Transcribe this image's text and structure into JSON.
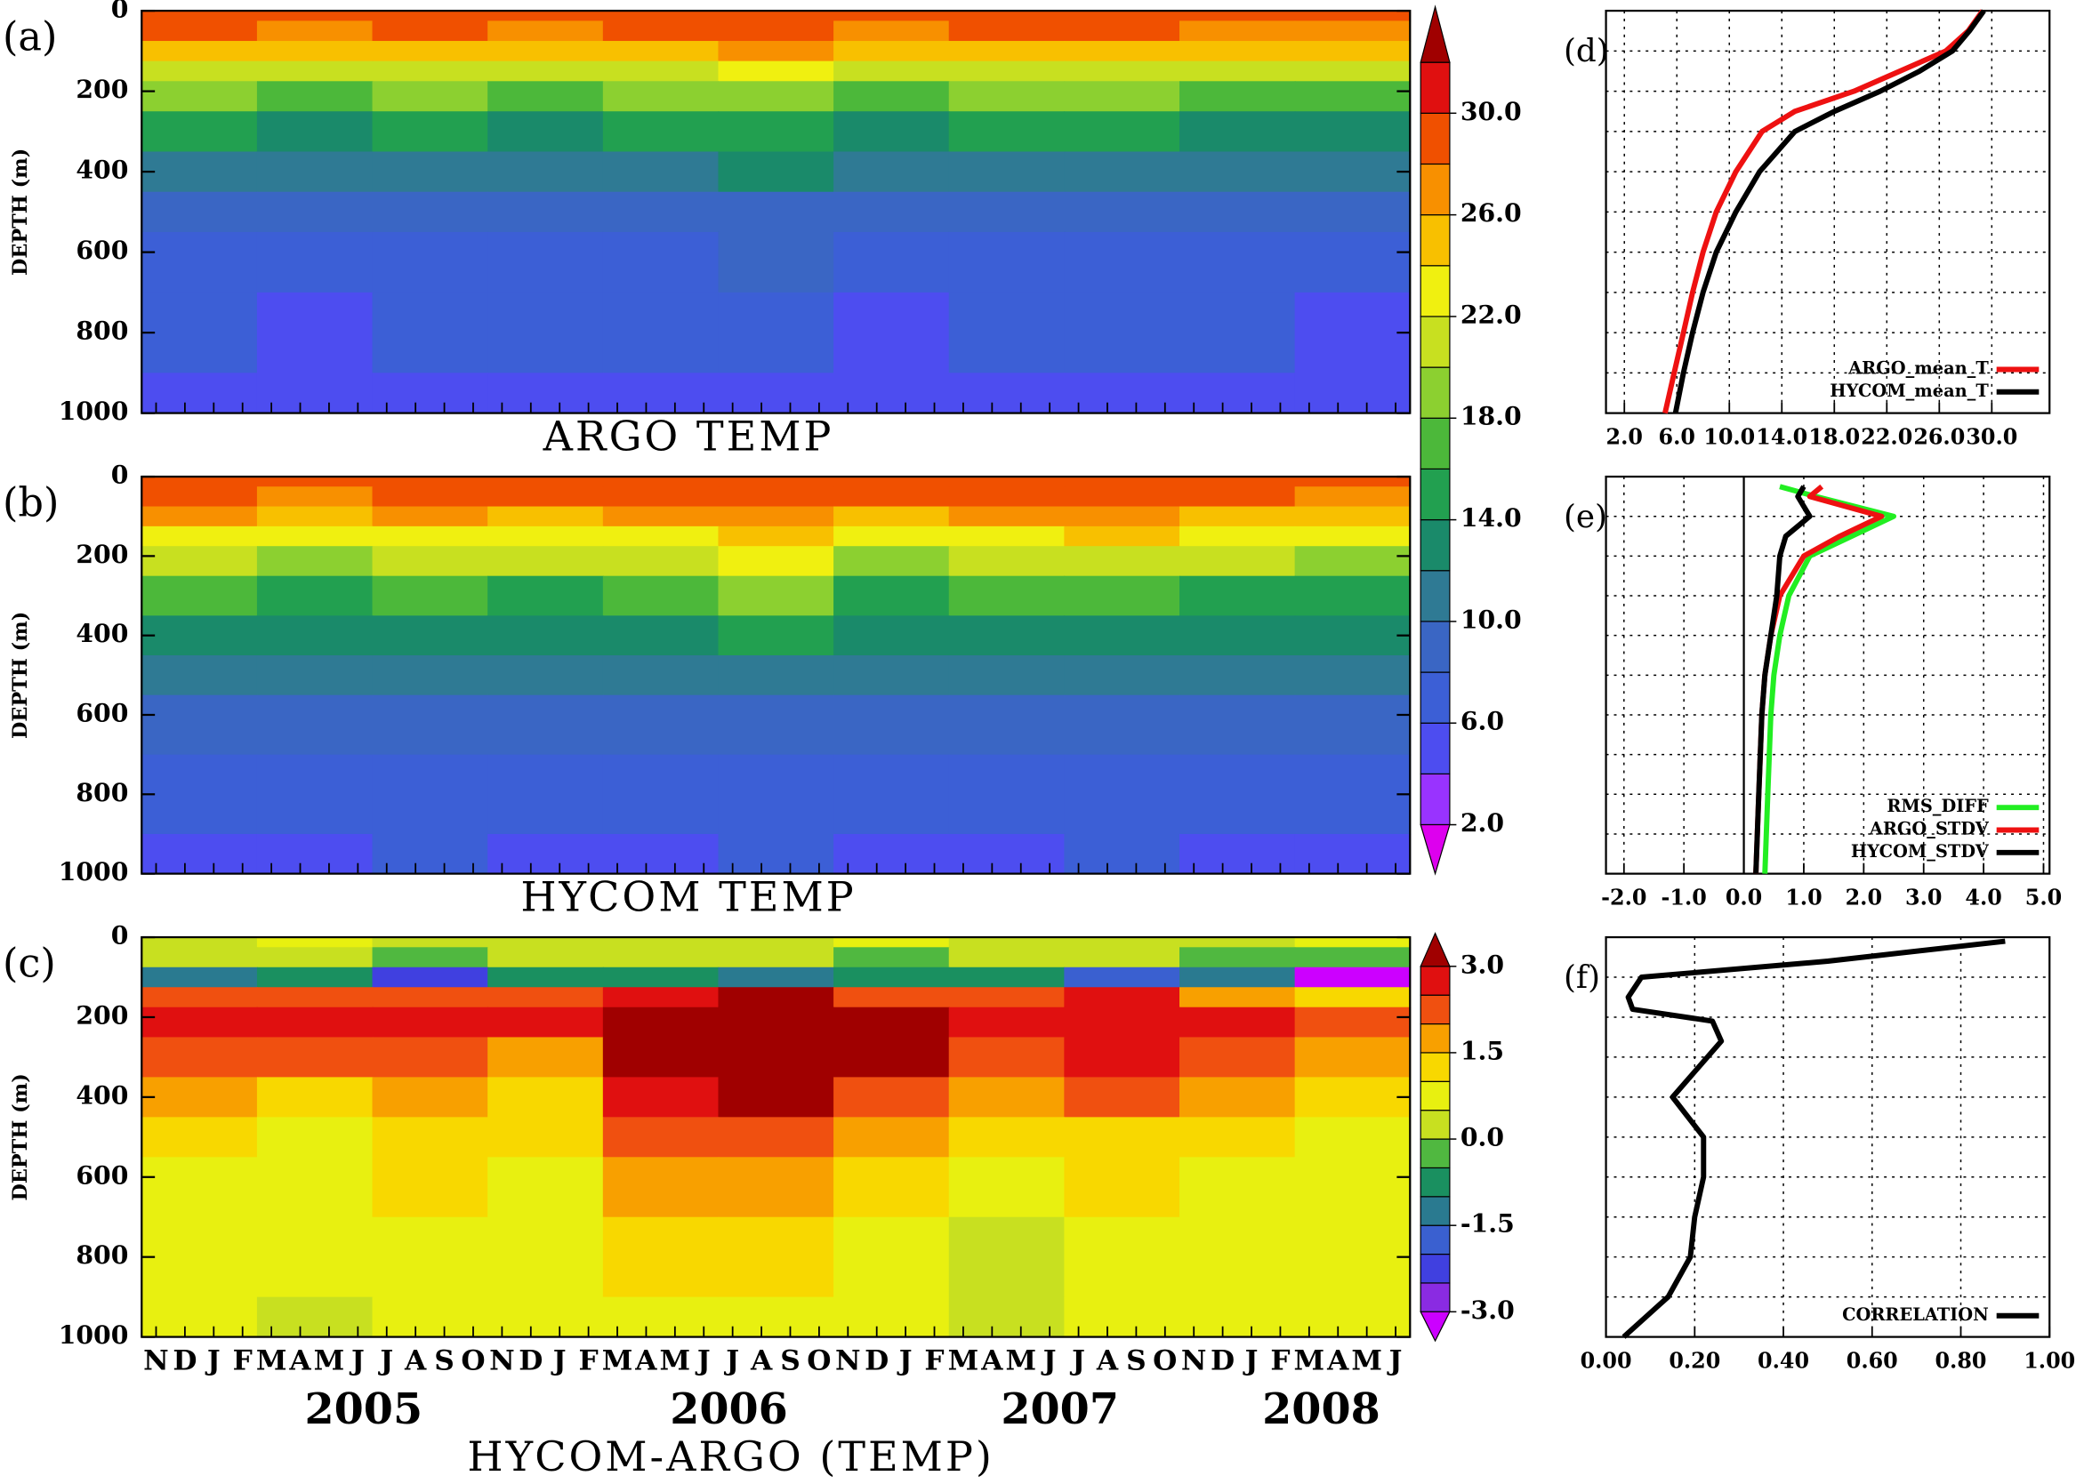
{
  "chart_data": [
    {
      "type": "heatmap",
      "label": "(a)",
      "title": "ARGO TEMP",
      "ylabel": "DEPTH (m)",
      "ylim": [
        1000,
        0
      ],
      "yticks": [
        0,
        200,
        400,
        600,
        800,
        1000
      ],
      "depths": [
        0,
        50,
        100,
        150,
        200,
        300,
        400,
        500,
        600,
        800,
        1000
      ],
      "z": [
        [
          29.5,
          29,
          29.8,
          29.2,
          29.6,
          29.8,
          29.1,
          29.5,
          29.9,
          29.3,
          29.0
        ],
        [
          28,
          27.5,
          28.5,
          27.8,
          28.2,
          28.8,
          27.6,
          28,
          28.6,
          27.9,
          27.5
        ],
        [
          25,
          24,
          25.5,
          24.5,
          25.2,
          26,
          24.2,
          25,
          25.8,
          24.6,
          24
        ],
        [
          21,
          20,
          21.5,
          20.5,
          21,
          22.5,
          20.2,
          21,
          21.8,
          20.5,
          20
        ],
        [
          18,
          17,
          18.5,
          17.5,
          18,
          19.5,
          17.2,
          18,
          18.8,
          17.6,
          17
        ],
        [
          14,
          13.5,
          14.5,
          13.8,
          14,
          15.5,
          13.6,
          14.2,
          14.8,
          13.8,
          13.4
        ],
        [
          11,
          10.8,
          11.4,
          10.9,
          11.1,
          12.2,
          10.9,
          11.3,
          11.6,
          11,
          10.7
        ],
        [
          9,
          8.8,
          9.4,
          8.9,
          9.1,
          9.8,
          8.9,
          9.2,
          9.5,
          9,
          8.8
        ],
        [
          7.5,
          7.3,
          7.8,
          7.4,
          7.6,
          8.1,
          7.4,
          7.7,
          7.9,
          7.5,
          7.3
        ],
        [
          6,
          5.8,
          6.3,
          6,
          6.1,
          6.5,
          5.9,
          6.2,
          6.4,
          6,
          5.8
        ],
        [
          5.1,
          5,
          5.3,
          5.1,
          5.2,
          5.5,
          5,
          5.2,
          5.4,
          5.1,
          5
        ]
      ],
      "levels": [
        2,
        4,
        6,
        8,
        10,
        12,
        14,
        16,
        18,
        20,
        22,
        24,
        26,
        28,
        30,
        32
      ],
      "colors": [
        "#9933ff",
        "#4d4df0",
        "#3c5fd6",
        "#3a66c4",
        "#2f7a94",
        "#1a8a6a",
        "#22a050",
        "#4cb83a",
        "#8cd030",
        "#c8e020",
        "#f0f010",
        "#f8c000",
        "#f89000",
        "#f05000",
        "#e01010"
      ],
      "under_color": "#dd00ee",
      "over_color": "#a00000",
      "cbar_ticks": [
        {
          "value": 2,
          "label": "2.0"
        },
        {
          "value": 6,
          "label": "6.0"
        },
        {
          "value": 10,
          "label": "10.0"
        },
        {
          "value": 14,
          "label": "14.0"
        },
        {
          "value": 18,
          "label": "18.0"
        },
        {
          "value": 22,
          "label": "22.0"
        },
        {
          "value": 26,
          "label": "26.0"
        },
        {
          "value": 30,
          "label": "30.0"
        }
      ]
    },
    {
      "type": "heatmap",
      "label": "(b)",
      "title": "HYCOM TEMP",
      "ylabel": "DEPTH (m)",
      "ylim": [
        1000,
        0
      ],
      "yticks": [
        0,
        200,
        400,
        600,
        800,
        1000
      ],
      "depths": [
        0,
        50,
        100,
        150,
        200,
        300,
        400,
        500,
        600,
        800,
        1000
      ],
      "z": [
        [
          29.6,
          29.2,
          29.9,
          29.4,
          29.7,
          29.9,
          29.3,
          29.6,
          29.9,
          29.4,
          29.1
        ],
        [
          28.4,
          27.9,
          28.8,
          28.2,
          28.6,
          29,
          28,
          28.4,
          28.9,
          28.2,
          27.9
        ],
        [
          26,
          25.2,
          26.4,
          25.6,
          26.2,
          27,
          25.4,
          26,
          26.8,
          25.6,
          25.2
        ],
        [
          23,
          22,
          23.5,
          22.5,
          23.5,
          25,
          22.4,
          23,
          24,
          22.5,
          22
        ],
        [
          20.5,
          19.5,
          21,
          20,
          21,
          23,
          19.8,
          20.5,
          21.5,
          20,
          19.5
        ],
        [
          16,
          15,
          16.5,
          15.5,
          16.5,
          18,
          15.5,
          16,
          17,
          15.5,
          15
        ],
        [
          12.5,
          12,
          13,
          12.5,
          13,
          14.5,
          12.4,
          12.8,
          13.5,
          12.5,
          12
        ],
        [
          10.2,
          10,
          10.6,
          10.2,
          10.6,
          11.8,
          10.2,
          10.5,
          11,
          10.2,
          10
        ],
        [
          8.6,
          8.4,
          8.9,
          8.6,
          8.9,
          9.8,
          8.6,
          8.8,
          9.2,
          8.6,
          8.4
        ],
        [
          6.8,
          6.6,
          7,
          6.8,
          7,
          7.6,
          6.8,
          7,
          7.2,
          6.8,
          6.6
        ],
        [
          5.8,
          5.6,
          6,
          5.8,
          5.9,
          6.3,
          5.7,
          5.9,
          6.1,
          5.8,
          5.6
        ]
      ]
    },
    {
      "type": "heatmap",
      "label": "(c)",
      "title": "HYCOM-ARGO (TEMP)",
      "ylabel": "DEPTH (m)",
      "ylim": [
        1000,
        0
      ],
      "yticks": [
        0,
        200,
        400,
        600,
        800,
        1000
      ],
      "categories": [
        "N",
        "D",
        "J",
        "F",
        "M",
        "A",
        "M",
        "J",
        "J",
        "A",
        "S",
        "O",
        "N",
        "D",
        "J",
        "F",
        "M",
        "A",
        "M",
        "J",
        "J",
        "A",
        "S",
        "O",
        "N",
        "D",
        "J",
        "F",
        "M",
        "A",
        "M",
        "J",
        "J",
        "A",
        "S",
        "O",
        "N",
        "D",
        "J",
        "F",
        "M",
        "A",
        "M",
        "J"
      ],
      "years": [
        "2005",
        "2006",
        "2007",
        "2008"
      ],
      "depths": [
        0,
        50,
        100,
        150,
        200,
        300,
        400,
        500,
        600,
        800,
        1000
      ],
      "z": [
        [
          0.3,
          0.5,
          0.2,
          0.4,
          0.2,
          0.3,
          0.5,
          0.3,
          0.2,
          0.4,
          0.5
        ],
        [
          0.2,
          0.1,
          -0.5,
          0.3,
          0.4,
          0.2,
          -0.3,
          0.4,
          0.3,
          -0.2,
          -0.4
        ],
        [
          -1.2,
          -0.8,
          -2.5,
          -1,
          -0.6,
          -1.5,
          -0.8,
          -1,
          -2,
          -1.5,
          -3.2
        ],
        [
          2,
          2.4,
          2,
          2,
          2.5,
          3.2,
          2.2,
          2,
          2.5,
          1.8,
          1
        ],
        [
          2.6,
          2.5,
          2.5,
          2.5,
          3,
          3.5,
          3.1,
          2.6,
          2.8,
          2.5,
          2.2
        ],
        [
          2.2,
          2,
          2,
          1.8,
          3.2,
          3.6,
          3.2,
          2.4,
          2.6,
          2.2,
          1.8
        ],
        [
          1.6,
          1.2,
          1.5,
          1.4,
          2.6,
          3.1,
          2.4,
          1.6,
          2,
          1.5,
          1.3
        ],
        [
          1.1,
          0.8,
          1.2,
          1,
          2,
          2.2,
          1.8,
          1,
          1.4,
          1,
          0.9
        ],
        [
          0.9,
          0.7,
          1,
          0.8,
          1.6,
          1.7,
          1.2,
          0.6,
          1.2,
          0.8,
          0.8
        ],
        [
          0.6,
          0.5,
          0.9,
          0.7,
          1.1,
          1.2,
          0.8,
          0.4,
          0.9,
          0.6,
          0.6
        ],
        [
          0.5,
          0.4,
          0.8,
          0.6,
          0.9,
          0.9,
          0.7,
          0.3,
          0.8,
          0.5,
          0.5
        ]
      ],
      "levels": [
        -3,
        -2.5,
        -2,
        -1.5,
        -1,
        -0.5,
        0,
        0.5,
        1,
        1.5,
        2,
        2.5,
        3
      ],
      "colors": [
        "#8a2be2",
        "#4040e0",
        "#3a60d0",
        "#2a7a90",
        "#1a9060",
        "#50b840",
        "#c8e020",
        "#e8f010",
        "#f8d800",
        "#f8a000",
        "#f05010",
        "#e01010"
      ],
      "under_color": "#cc00ff",
      "over_color": "#a00000",
      "cbar_ticks": [
        {
          "value": -3,
          "label": "-3.0"
        },
        {
          "value": -1.5,
          "label": "-1.5"
        },
        {
          "value": 0,
          "label": "0.0"
        },
        {
          "value": 1.5,
          "label": "1.5"
        },
        {
          "value": 3,
          "label": "3.0"
        }
      ]
    },
    {
      "type": "line",
      "label": "(d)",
      "legend": "lower right",
      "grid": true,
      "xlim": [
        0.6,
        34.4
      ],
      "xticks": [
        {
          "value": 2,
          "label": "2.0"
        },
        {
          "value": 6,
          "label": "6.0"
        },
        {
          "value": 10,
          "label": "10.0"
        },
        {
          "value": 14,
          "label": "14.0"
        },
        {
          "value": 18,
          "label": "18.0"
        },
        {
          "value": 22,
          "label": "22.0"
        },
        {
          "value": 26,
          "label": "26.0"
        },
        {
          "value": 30,
          "label": "30.0"
        }
      ],
      "ylim": [
        1000,
        0
      ],
      "ygrid": [
        100,
        200,
        300,
        400,
        500,
        600,
        700,
        800,
        900
      ],
      "y": [
        0,
        50,
        100,
        150,
        200,
        250,
        300,
        400,
        500,
        600,
        700,
        800,
        900,
        1000
      ],
      "series": [
        {
          "name": "ARGO_mean_T",
          "color": "#ee1111",
          "values": [
            29.3,
            28.2,
            26.5,
            23,
            19.5,
            15,
            12.5,
            10.5,
            9,
            8,
            7.2,
            6.5,
            5.8,
            5.1
          ]
        },
        {
          "name": "HYCOM_mean_T",
          "color": "#000000",
          "values": [
            29.4,
            28.3,
            27,
            24.5,
            21.5,
            18,
            15,
            12.3,
            10.5,
            9,
            8,
            7.2,
            6.5,
            5.9
          ]
        }
      ]
    },
    {
      "type": "line",
      "label": "(e)",
      "legend": "lower right",
      "grid": true,
      "zero_line": true,
      "xlim": [
        -2.3,
        5.1
      ],
      "xticks": [
        {
          "value": -2,
          "label": "-2.0"
        },
        {
          "value": -1,
          "label": "-1.0"
        },
        {
          "value": 0,
          "label": "0.0"
        },
        {
          "value": 1,
          "label": "1.0"
        },
        {
          "value": 2,
          "label": "2.0"
        },
        {
          "value": 3,
          "label": "3.0"
        },
        {
          "value": 4,
          "label": "4.0"
        },
        {
          "value": 5,
          "label": "5.0"
        }
      ],
      "ylim": [
        1000,
        0
      ],
      "ygrid": [
        100,
        200,
        300,
        400,
        500,
        600,
        700,
        800,
        900
      ],
      "y": [
        25,
        50,
        100,
        150,
        200,
        300,
        400,
        500,
        600,
        800,
        1000
      ],
      "series": [
        {
          "name": "RMS_DIFF",
          "color": "#22ee22",
          "values": [
            0.6,
            1.2,
            2.5,
            1.8,
            1.1,
            0.75,
            0.6,
            0.5,
            0.45,
            0.4,
            0.35
          ]
        },
        {
          "name": "ARGO_STDV",
          "color": "#ee1111",
          "values": [
            1.3,
            1.1,
            2.3,
            1.6,
            1.0,
            0.6,
            0.45,
            0.35,
            0.3,
            0.25,
            0.2
          ]
        },
        {
          "name": "HYCOM_STDV",
          "color": "#000000",
          "values": [
            1.0,
            0.9,
            1.1,
            0.7,
            0.6,
            0.55,
            0.45,
            0.35,
            0.3,
            0.25,
            0.2
          ]
        }
      ]
    },
    {
      "type": "line",
      "label": "(f)",
      "legend": "lower right",
      "grid": true,
      "xlim": [
        0,
        1
      ],
      "xticks": [
        {
          "value": 0,
          "label": "0.00"
        },
        {
          "value": 0.2,
          "label": "0.20"
        },
        {
          "value": 0.4,
          "label": "0.40"
        },
        {
          "value": 0.6,
          "label": "0.60"
        },
        {
          "value": 0.8,
          "label": "0.80"
        },
        {
          "value": 1,
          "label": "1.00"
        }
      ],
      "ylim": [
        1000,
        0
      ],
      "ygrid": [
        100,
        200,
        300,
        400,
        500,
        600,
        700,
        800,
        900
      ],
      "y": [
        10,
        60,
        100,
        150,
        180,
        210,
        260,
        400,
        500,
        600,
        700,
        800,
        900,
        920,
        1000
      ],
      "series": [
        {
          "name": "CORRELATION",
          "color": "#000000",
          "values": [
            0.9,
            0.5,
            0.08,
            0.05,
            0.06,
            0.24,
            0.26,
            0.15,
            0.22,
            0.22,
            0.2,
            0.19,
            0.14,
            0.12,
            0.04
          ]
        }
      ]
    }
  ]
}
